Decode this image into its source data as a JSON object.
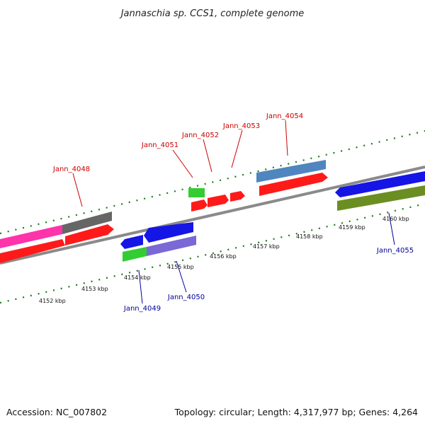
{
  "title": "Jannaschia sp. CCS1, complete genome",
  "footer": {
    "accession": "Accession: NC_007802",
    "summary": "Topology: circular; Length: 4,317,977 bp; Genes: 4,264"
  },
  "scale_ticks": [
    "4152 kbp",
    "4153 kbp",
    "4154 kbp",
    "4155 kbp",
    "4156 kbp",
    "4157 kbp",
    "4158 kbp",
    "4159 kbp",
    "4160 kbp"
  ],
  "top_labels": [
    "Jann_4048",
    "Jann_4051",
    "Jann_4052",
    "Jann_4053",
    "Jann_4054"
  ],
  "bottom_labels": [
    "Jann_4049",
    "Jann_4050",
    "Jann_4055"
  ],
  "colors": {
    "top_label": "#cc0000",
    "bottom_label": "#000099",
    "axis_dots": "#1a7a1a",
    "backbone": "#8a8a8a",
    "red": "#ff1a1a",
    "blue": "#1515e6",
    "green": "#33cc33",
    "pink": "#ff33aa",
    "gray": "#666666",
    "steelblue": "#4f86bf",
    "olive": "#6b8e23",
    "purple": "#7a68d6"
  }
}
